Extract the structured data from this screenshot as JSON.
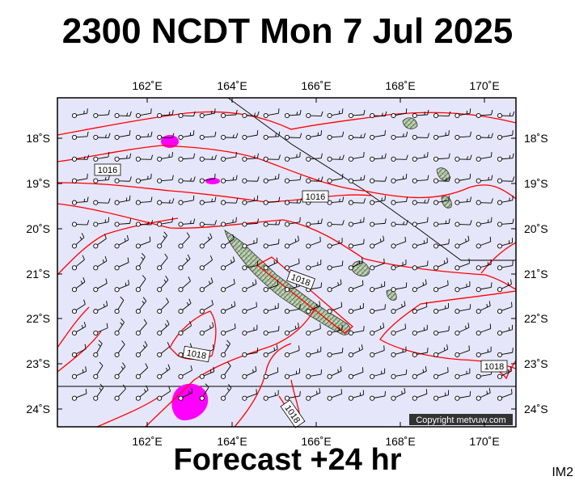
{
  "title": "2300 NCDT Mon 7 Jul 2025",
  "footer": "Forecast +24 hr",
  "image_code": "IM2",
  "copyright": "Copyright metvuw.com",
  "colors": {
    "background": "#e6e6fa",
    "isobar": "#ff0000",
    "rain": "#ff00ff",
    "land": "#a8bca0",
    "barb": "#000000"
  },
  "axes": {
    "lon_ticks": [
      "162˚E",
      "164˚E",
      "166˚E",
      "168˚E",
      "170˚E"
    ],
    "lat_ticks": [
      "18˚S",
      "19˚S",
      "20˚S",
      "21˚S",
      "22˚S",
      "23˚S",
      "24˚S"
    ]
  },
  "isobar_labels": [
    "1016",
    "1016",
    "1018",
    "1018",
    "1018",
    "1018"
  ]
}
